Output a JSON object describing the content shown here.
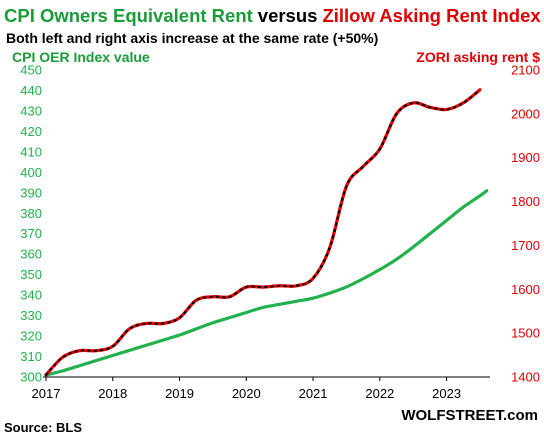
{
  "chart_data": {
    "type": "line",
    "title_parts": [
      "CPI Owners Equivalent Rent",
      "versus",
      "Zillow Asking Rent Index"
    ],
    "subtitle": "Both left and right axis increase at the same rate (+50%)",
    "left_axis_label": "CPI OER  Index value",
    "right_axis_label": "ZORI asking rent $",
    "source": "Source: BLS",
    "brand": "WOLFSTREET.com",
    "colors": {
      "title_left": "#1a9c3a",
      "title_right": "#e00000",
      "cpi_line": "#22b14c",
      "zori_line": "#e00000",
      "zori_dots": "#000000"
    },
    "x_ticks": [
      "2017",
      "2018",
      "2019",
      "2020",
      "2021",
      "2022",
      "2023"
    ],
    "xlim": [
      2017.0,
      2023.65
    ],
    "left_ylim": [
      300,
      450
    ],
    "left_ticks": [
      300,
      310,
      320,
      330,
      340,
      350,
      360,
      370,
      380,
      390,
      400,
      410,
      420,
      430,
      440,
      450
    ],
    "right_ylim": [
      1400,
      2100
    ],
    "right_ticks": [
      1400,
      1500,
      1600,
      1700,
      1800,
      1900,
      2000,
      2100
    ],
    "series": [
      {
        "name": "CPI OER",
        "axis": "left",
        "x": [
          2017.0,
          2017.25,
          2017.5,
          2017.75,
          2018.0,
          2018.25,
          2018.5,
          2018.75,
          2019.0,
          2019.25,
          2019.5,
          2019.75,
          2020.0,
          2020.25,
          2020.5,
          2020.75,
          2021.0,
          2021.25,
          2021.5,
          2021.75,
          2022.0,
          2022.25,
          2022.5,
          2022.75,
          2023.0,
          2023.25,
          2023.5,
          2023.6
        ],
        "values": [
          301.0,
          303.0,
          305.5,
          308.0,
          310.5,
          313.0,
          315.5,
          318.0,
          320.5,
          323.5,
          326.5,
          329.0,
          331.5,
          334.0,
          335.5,
          337.0,
          338.5,
          341.0,
          344.0,
          348.0,
          352.5,
          357.5,
          363.5,
          370.0,
          376.5,
          383.0,
          388.5,
          391.0
        ]
      },
      {
        "name": "ZORI",
        "axis": "right",
        "x": [
          2017.0,
          2017.25,
          2017.5,
          2017.75,
          2018.0,
          2018.25,
          2018.5,
          2018.75,
          2019.0,
          2019.25,
          2019.5,
          2019.75,
          2020.0,
          2020.25,
          2020.5,
          2020.75,
          2021.0,
          2021.25,
          2021.5,
          2021.75,
          2022.0,
          2022.25,
          2022.5,
          2022.75,
          2023.0,
          2023.25,
          2023.5
        ],
        "values": [
          1405,
          1445,
          1460,
          1460,
          1470,
          1510,
          1522,
          1522,
          1535,
          1575,
          1583,
          1583,
          1605,
          1605,
          1608,
          1608,
          1625,
          1695,
          1835,
          1880,
          1920,
          2000,
          2025,
          2015,
          2010,
          2025,
          2055
        ]
      }
    ]
  }
}
